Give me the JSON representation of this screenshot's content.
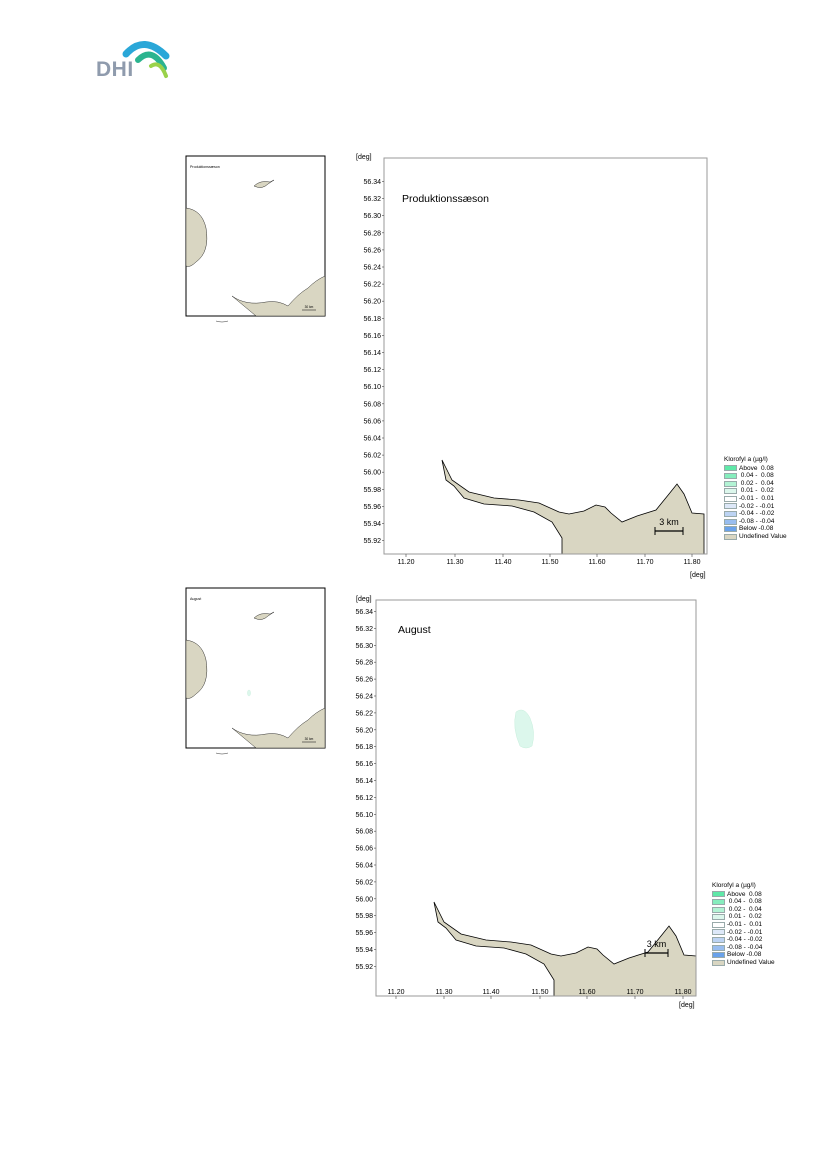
{
  "logo": {
    "text": "DHI",
    "colors": {
      "text": "#8f9bad",
      "arc1": "#2aa7d8",
      "arc2": "#2bb48f",
      "arc3": "#9ad24a"
    }
  },
  "colors": {
    "land": "#d9d6c2",
    "coast": "#000000",
    "frame": "#9a9a9a",
    "patch": "#dcf7ec"
  },
  "legend": {
    "title": "Klorofyl a (µg/l)",
    "items": [
      {
        "label": "Above  0.08",
        "color": "#5fe8a8"
      },
      {
        "label": " 0.04 -  0.08",
        "color": "#86edbd"
      },
      {
        "label": " 0.02 -  0.04",
        "color": "#b2f3d4"
      },
      {
        "label": " 0.01 -  0.02",
        "color": "#dcf7ec"
      },
      {
        "label": "-0.01 -  0.01",
        "color": "#ffffff"
      },
      {
        "label": "-0.02 - -0.01",
        "color": "#dde8f8"
      },
      {
        "label": "-0.04 - -0.02",
        "color": "#bcd3f3"
      },
      {
        "label": "-0.08 - -0.04",
        "color": "#98bdef"
      },
      {
        "label": "Below -0.08",
        "color": "#6aa2ea"
      },
      {
        "label": "Undefined Value",
        "color": "#d9d6c2"
      }
    ]
  },
  "axes": {
    "unit_label": "[deg]",
    "lat_ticks": [
      "56.34",
      "56.32",
      "56.30",
      "56.28",
      "56.26",
      "56.24",
      "56.22",
      "56.20",
      "56.18",
      "56.16",
      "56.14",
      "56.12",
      "56.10",
      "56.08",
      "56.06",
      "56.04",
      "56.02",
      "56.00",
      "55.98",
      "55.96",
      "55.94",
      "55.92"
    ],
    "lon_ticks": [
      "11.20",
      "11.30",
      "11.40",
      "11.50",
      "11.60",
      "11.70",
      "11.80"
    ]
  },
  "scalebar": {
    "label": "3 km"
  },
  "panels": [
    {
      "title": "Produktionssæson",
      "inset_title": "Produktionssæson",
      "inset_scale": "30 km",
      "has_patch": false
    },
    {
      "title": "August",
      "inset_title": "August",
      "inset_scale": "30 km",
      "has_patch": true
    }
  ]
}
